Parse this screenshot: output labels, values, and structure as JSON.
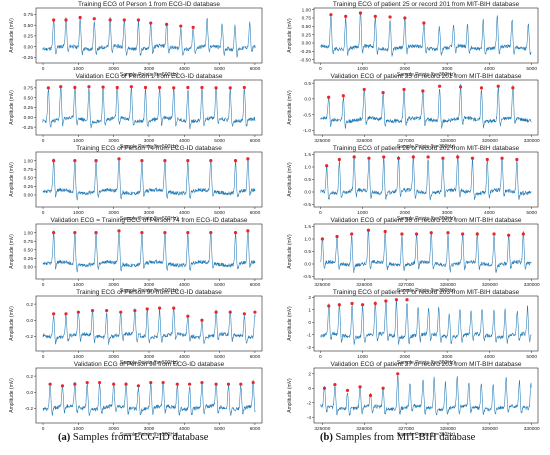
{
  "captions": {
    "left_tag": "(a)",
    "left_text": " Samples from ECG-ID database",
    "right_tag": "(b)",
    "right_text": " Samples from MIT-BIH database"
  },
  "chart_data": [
    {
      "type": "line",
      "col": "left",
      "title": "Training ECG of Person 1 from ECG-ID database",
      "xlabel": "Sample Points (fs=500Hz)",
      "ylabel": "Amplitude (mV)",
      "xlim": [
        -200,
        6200
      ],
      "ylim": [
        -0.38,
        0.9
      ],
      "xticks": [
        "0",
        "1000",
        "2000",
        "3000",
        "4000",
        "5000",
        "6000"
      ],
      "yticks": [
        "-0.25",
        "0.00",
        "0.25",
        "0.50",
        "0.75"
      ],
      "peaks_x": [
        300,
        650,
        1050,
        1450,
        1900,
        2300,
        2700,
        3050,
        3500,
        3900,
        4250
      ],
      "peaks_y": [
        0.62,
        0.62,
        0.68,
        0.65,
        0.62,
        0.62,
        0.62,
        0.55,
        0.52,
        0.48,
        0.45
      ],
      "seed": 11
    },
    {
      "type": "line",
      "col": "left",
      "title": "Validation ECG of Person 1 from ECG-ID database",
      "xlabel": "Sample Points (fs=500Hz)",
      "ylabel": "Amplitude (mV)",
      "xlim": [
        -200,
        6200
      ],
      "ylim": [
        -0.45,
        0.95
      ],
      "xticks": [
        "0",
        "1000",
        "2000",
        "3000",
        "4000",
        "5000",
        "6000"
      ],
      "yticks": [
        "-0.25",
        "0.00",
        "0.25",
        "0.50",
        "0.75"
      ],
      "peaks_x": [
        150,
        500,
        900,
        1300,
        1700,
        2100,
        2500,
        2900,
        3300,
        3700,
        4100,
        4500,
        4900,
        5300,
        5700
      ],
      "peaks_y": [
        0.75,
        0.78,
        0.76,
        0.78,
        0.77,
        0.76,
        0.78,
        0.76,
        0.76,
        0.75,
        0.76,
        0.76,
        0.75,
        0.75,
        0.76
      ],
      "seed": 23
    },
    {
      "type": "line",
      "col": "left",
      "title": "Training ECG of Person 74 from ECG-ID database",
      "xlabel": "Sample Points (fs=500Hz)",
      "ylabel": "Amplitude (mV)",
      "xlim": [
        -200,
        6200
      ],
      "ylim": [
        -0.35,
        1.25
      ],
      "xticks": [
        "0",
        "1000",
        "2000",
        "3000",
        "4000",
        "5000",
        "6000"
      ],
      "yticks": [
        "0.00",
        "0.25",
        "0.50",
        "0.75",
        "1.00"
      ],
      "peaks_x": [
        300,
        900,
        1500,
        2150,
        2800,
        3450,
        4100,
        4750,
        5450,
        5800
      ],
      "peaks_y": [
        1.0,
        1.0,
        1.0,
        1.05,
        1.0,
        1.0,
        1.0,
        1.0,
        1.0,
        1.05
      ],
      "seed": 37
    },
    {
      "type": "line",
      "col": "left",
      "title": "Validation ECG = Training ECG of Person 74 from ECG-ID database",
      "xlabel": "Sample Points (fs=500Hz)",
      "ylabel": "Amplitude (mV)",
      "xlim": [
        -200,
        6200
      ],
      "ylim": [
        -0.35,
        1.25
      ],
      "xticks": [
        "0",
        "1000",
        "2000",
        "3000",
        "4000",
        "5000",
        "6000"
      ],
      "yticks": [
        "0.00",
        "0.25",
        "0.50",
        "0.75",
        "1.00"
      ],
      "peaks_x": [
        300,
        900,
        1500,
        2150,
        2800,
        3450,
        4100,
        4750,
        5450,
        5800
      ],
      "peaks_y": [
        1.0,
        1.0,
        1.0,
        1.05,
        1.0,
        1.0,
        1.0,
        1.0,
        1.0,
        1.05
      ],
      "seed": 37
    },
    {
      "type": "line",
      "col": "left",
      "title": "Training ECG of Person 90 from ECG-ID database",
      "xlabel": "Sample Points (fs=500Hz)",
      "ylabel": "Amplitude (mV)",
      "xlim": [
        -200,
        6200
      ],
      "ylim": [
        -0.38,
        0.3
      ],
      "xticks": [
        "0",
        "1000",
        "2000",
        "3000",
        "4000",
        "5000",
        "6000"
      ],
      "yticks": [
        "-0.2",
        "0.0",
        "0.2"
      ],
      "peaks_x": [
        300,
        650,
        1000,
        1400,
        1800,
        2200,
        2600,
        2950,
        3300,
        3700,
        4100,
        4500,
        4900,
        5300,
        5700,
        6000
      ],
      "peaks_y": [
        0.08,
        0.08,
        0.1,
        0.12,
        0.12,
        0.1,
        0.12,
        0.14,
        0.15,
        0.15,
        0.05,
        0.0,
        0.1,
        0.1,
        0.08,
        0.1
      ],
      "seed": 53
    },
    {
      "type": "line",
      "col": "left",
      "title": "Validation ECG of Person 90 from ECG-ID database",
      "xlabel": "Sample Points (fs=500Hz)",
      "ylabel": "Amplitude (mV)",
      "xlim": [
        -200,
        6200
      ],
      "ylim": [
        -0.38,
        0.3
      ],
      "xticks": [
        "0",
        "1000",
        "2000",
        "3000",
        "4000",
        "5000",
        "6000"
      ],
      "yticks": [
        "-0.2",
        "0.0",
        "0.2"
      ],
      "peaks_x": [
        200,
        550,
        900,
        1250,
        1600,
        2000,
        2350,
        2700,
        3050,
        3400,
        3800,
        4150,
        4500,
        4900,
        5250,
        5600,
        5950
      ],
      "peaks_y": [
        0.1,
        0.08,
        0.1,
        0.12,
        0.12,
        0.1,
        0.1,
        0.08,
        0.12,
        0.12,
        0.1,
        0.1,
        0.12,
        0.1,
        0.1,
        0.1,
        0.12
      ],
      "seed": 61
    },
    {
      "type": "line",
      "col": "right",
      "title": "Training ECG of patient 25 or record 201 from MIT-BIH database",
      "xlabel": "Sample Points (fs=360Hz)",
      "ylabel": "Amplitude (mV)",
      "xlim": [
        -150,
        5150
      ],
      "ylim": [
        -0.6,
        1.05
      ],
      "xticks": [
        "0",
        "1000",
        "2000",
        "3000",
        "4000",
        "5000"
      ],
      "yticks": [
        "-0.50",
        "-0.25",
        "0.00",
        "0.25",
        "0.50",
        "0.75",
        "1.00"
      ],
      "peaks_x": [
        250,
        600,
        950,
        1300,
        1650,
        2000,
        2450
      ],
      "peaks_y": [
        0.85,
        0.8,
        0.9,
        0.8,
        0.78,
        0.75,
        0.6
      ],
      "seed": 71
    },
    {
      "type": "line",
      "col": "right",
      "title": "Validation ECG of patient 25 or record 201 from MIT-BIH database",
      "xlabel": "Sample Points (fs=360Hz)",
      "ylabel": "Amplitude (mV)",
      "xlim": [
        324800,
        330150
      ],
      "ylim": [
        -1.15,
        0.6
      ],
      "xticks": [
        "325000",
        "326000",
        "327000",
        "328000",
        "329000",
        "330000"
      ],
      "yticks": [
        "-1.0",
        "-0.5",
        "0.0",
        "0.5"
      ],
      "peaks_x": [
        325150,
        325500,
        326000,
        326450,
        326950,
        327400,
        327800,
        328300,
        328800,
        329200,
        329550
      ],
      "peaks_y": [
        0.05,
        0.1,
        0.3,
        0.2,
        0.3,
        0.25,
        0.4,
        0.38,
        0.35,
        0.4,
        0.35
      ],
      "seed": 83
    },
    {
      "type": "line",
      "col": "right",
      "title": "Training ECG of patient 26 or record 202 from MIT-BIH database",
      "xlabel": "Sample Points (fs=360Hz)",
      "ylabel": "Amplitude (mV)",
      "xlim": [
        -150,
        5150
      ],
      "ylim": [
        -0.6,
        1.6
      ],
      "xticks": [
        "0",
        "1000",
        "2000",
        "3000",
        "4000",
        "5000"
      ],
      "yticks": [
        "-0.5",
        "0.0",
        "0.5",
        "1.0",
        "1.5"
      ],
      "peaks_x": [
        150,
        450,
        800,
        1150,
        1500,
        1850,
        2200,
        2550,
        2900,
        3250,
        3600,
        3950,
        4300,
        4650
      ],
      "peaks_y": [
        1.05,
        1.3,
        1.4,
        1.35,
        1.4,
        1.35,
        1.4,
        1.4,
        1.35,
        1.4,
        1.35,
        1.3,
        1.35,
        1.3
      ],
      "seed": 97
    },
    {
      "type": "line",
      "col": "right",
      "title": "Validation ECG of patient 26 or record 202 from MIT-BIH database",
      "xlabel": "Sample Points (fs=360Hz)",
      "ylabel": "Amplitude (mV)",
      "xlim": [
        324800,
        330150
      ],
      "ylim": [
        -0.6,
        1.6
      ],
      "xticks": [
        "325000",
        "326000",
        "327000",
        "328000",
        "329000",
        "330000"
      ],
      "yticks": [
        "-0.5",
        "0.0",
        "0.5",
        "1.0",
        "1.5"
      ],
      "peaks_x": [
        325000,
        325350,
        325700,
        326100,
        326500,
        326900,
        327250,
        327600,
        328000,
        328350,
        328700,
        329100,
        329450,
        329800
      ],
      "peaks_y": [
        1.0,
        1.1,
        1.2,
        1.35,
        1.3,
        1.2,
        1.2,
        1.25,
        1.25,
        1.2,
        1.2,
        1.2,
        1.15,
        1.2
      ],
      "seed": 101
    },
    {
      "type": "line",
      "col": "right",
      "title": "Training ECG of patient 27 or record 203 from MIT-BIH database",
      "xlabel": "Sample Points (fs=360Hz)",
      "ylabel": "Amplitude (mV)",
      "xlim": [
        -150,
        5150
      ],
      "ylim": [
        -2.3,
        2.1
      ],
      "xticks": [
        "0",
        "1000",
        "2000",
        "3000",
        "4000",
        "5000"
      ],
      "yticks": [
        "-2",
        "-1",
        "0",
        "1",
        "2"
      ],
      "peaks_x": [
        200,
        450,
        750,
        1000,
        1300,
        1550,
        1800,
        2050
      ],
      "peaks_y": [
        1.3,
        1.4,
        1.5,
        1.4,
        1.5,
        1.7,
        1.8,
        1.8
      ],
      "seed": 113
    },
    {
      "type": "line",
      "col": "right",
      "title": "Validation ECG of patient 27 or record 203 from MIT-BIH database",
      "xlabel": "Sample Points (fs=360Hz)",
      "ylabel": "Amplitude (mV)",
      "xlim": [
        324800,
        330150
      ],
      "ylim": [
        -4.8,
        2.8
      ],
      "xticks": [
        "325000",
        "326000",
        "327000",
        "328000",
        "329000",
        "330000"
      ],
      "yticks": [
        "-4",
        "-2",
        "0",
        "2"
      ],
      "peaks_x": [
        325050,
        325300,
        325600,
        325900,
        326150,
        326450,
        326800
      ],
      "peaks_y": [
        0.0,
        0.5,
        -0.3,
        0.2,
        -1.0,
        0.0,
        2.0
      ],
      "seed": 127
    }
  ]
}
